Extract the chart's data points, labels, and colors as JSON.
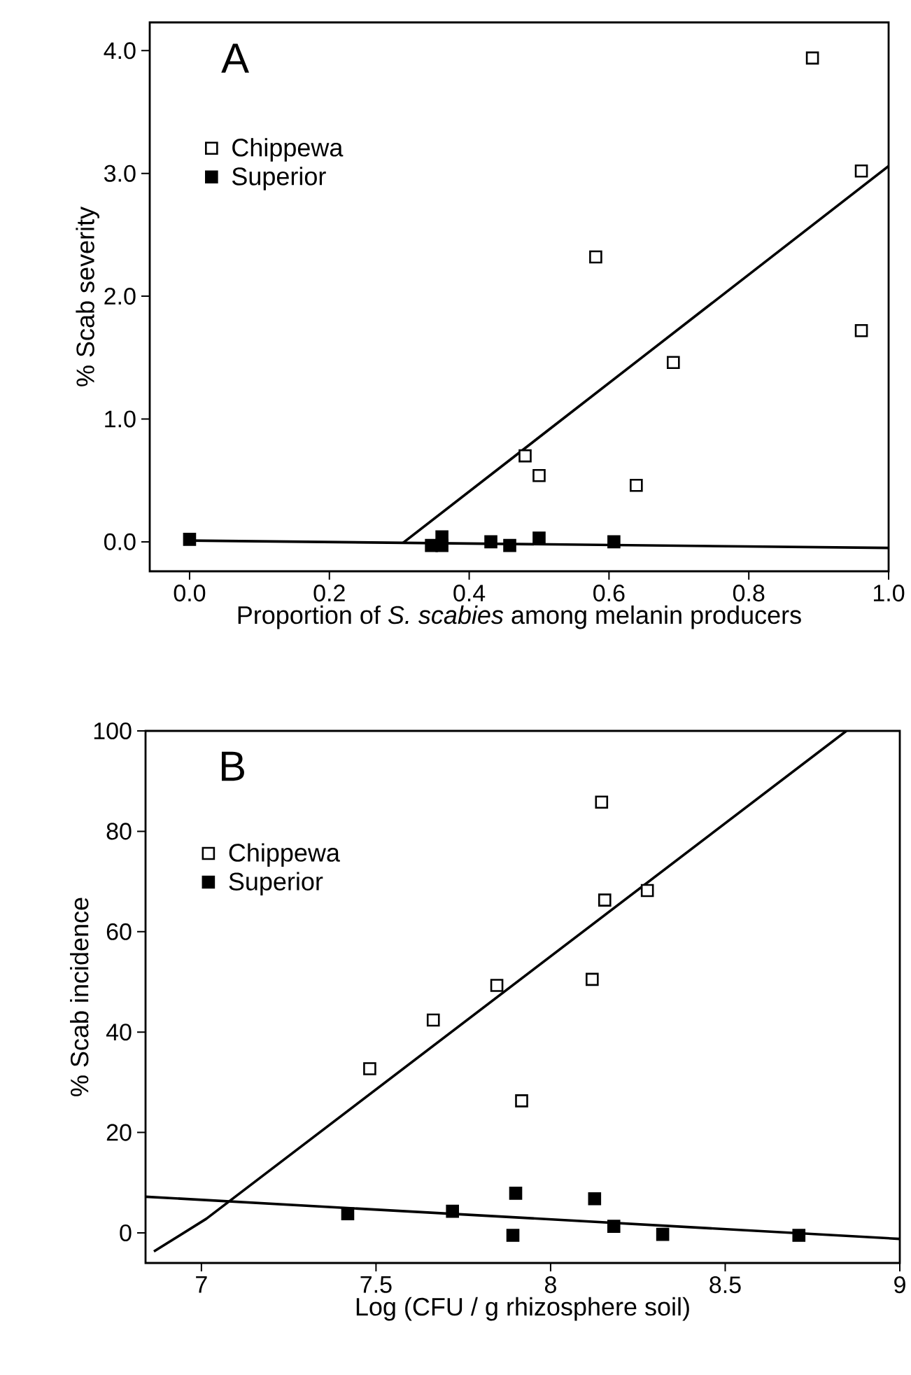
{
  "chart_data": [
    {
      "type": "scatter",
      "title": "A",
      "xlabel": "Proportion of *S. scabies*  among melanin producers",
      "ylabel": "% Scab severity",
      "xlim": [
        -0.057,
        1.0
      ],
      "ylim": [
        -0.24,
        4.23
      ],
      "xticks": [
        {
          "value": 0,
          "label": "0.0"
        },
        {
          "value": 0.2,
          "label": "0.2"
        },
        {
          "value": 0.4,
          "label": "0.4"
        },
        {
          "value": 0.6,
          "label": "0.6"
        },
        {
          "value": 0.8,
          "label": "0.8"
        },
        {
          "value": 1.0,
          "label": "1.0"
        }
      ],
      "yticks": [
        {
          "value": 0,
          "label": "0.0"
        },
        {
          "value": 1,
          "label": "1.0"
        },
        {
          "value": 2,
          "label": "2.0"
        },
        {
          "value": 3,
          "label": "3.0"
        },
        {
          "value": 4,
          "label": "4.0"
        }
      ],
      "legend": "top left",
      "marker": "square",
      "grid": false,
      "series": [
        {
          "name": "Chippewa",
          "color": "#ffffff",
          "x": [
            0.891,
            0.961,
            0.961,
            0.581,
            0.692,
            0.48,
            0.5,
            0.639
          ],
          "values": [
            3.94,
            3.02,
            1.72,
            2.32,
            1.46,
            0.7,
            0.54,
            0.46
          ]
        },
        {
          "name": "Superior",
          "color": "#000000",
          "x": [
            0.0,
            0.346,
            0.361,
            0.361,
            0.431,
            0.458,
            0.5,
            0.607
          ],
          "values": [
            0.02,
            -0.03,
            0.04,
            -0.03,
            0.0,
            -0.03,
            0.03,
            0.0
          ]
        },
        {
          "type": "line",
          "marker": "none",
          "color": "#000000",
          "x": [
            0.305,
            1.0
          ],
          "values": [
            -0.01,
            3.06
          ]
        },
        {
          "type": "line",
          "marker": "none",
          "color": "#000000",
          "x": [
            0.0,
            1.0
          ],
          "values": [
            0.01,
            -0.05
          ]
        }
      ]
    },
    {
      "type": "scatter",
      "title": "B",
      "xlabel": "Log (CFU / g rhizosphere soil)",
      "ylabel": "% Scab incidence",
      "xlim": [
        6.84,
        9.0
      ],
      "ylim": [
        -6,
        100
      ],
      "xticks": [
        7,
        7.5,
        8,
        8.5,
        9
      ],
      "yticks": [
        0,
        20,
        40,
        60,
        80,
        100
      ],
      "legend": "top left",
      "marker": "square",
      "grid": false,
      "series": [
        {
          "name": "Chippewa",
          "color": "#ffffff",
          "x": [
            8.146,
            8.155,
            8.277,
            8.119,
            7.846,
            7.664,
            7.482,
            7.917
          ],
          "values": [
            85.8,
            66.3,
            68.2,
            50.5,
            49.3,
            42.4,
            32.7,
            26.3
          ]
        },
        {
          "name": "Superior",
          "color": "#000000",
          "x": [
            7.419,
            7.719,
            7.9,
            7.892,
            8.126,
            8.181,
            8.321,
            8.711
          ],
          "values": [
            3.8,
            4.3,
            7.9,
            -0.5,
            6.8,
            1.3,
            -0.3,
            -0.5
          ]
        },
        {
          "type": "line",
          "marker": "none",
          "color": "#000000",
          "x": [
            6.864,
            7.014,
            8.847
          ],
          "values": [
            -3.7,
            2.8,
            100
          ]
        },
        {
          "type": "line",
          "marker": "none",
          "color": "#000000",
          "x": [
            6.84,
            9.0
          ],
          "values": [
            7.2,
            -1.2
          ]
        }
      ]
    }
  ]
}
